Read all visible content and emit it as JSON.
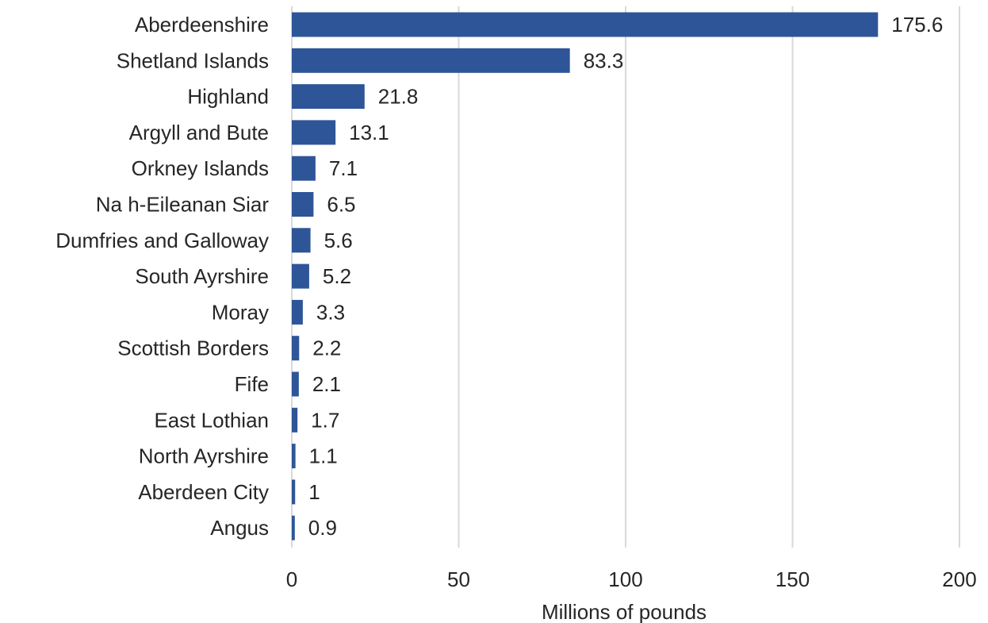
{
  "chart_data": {
    "type": "bar",
    "orientation": "horizontal",
    "title": "",
    "xlabel": "Millions of pounds",
    "ylabel": "",
    "xlim": [
      0,
      200
    ],
    "x_ticks": [
      0,
      50,
      100,
      150,
      200
    ],
    "grid": true,
    "legend": "none",
    "bar_color": "#2e5597",
    "categories": [
      "Aberdeenshire",
      "Shetland Islands",
      "Highland",
      "Argyll and Bute",
      "Orkney Islands",
      "Na h-Eileanan Siar",
      "Dumfries and Galloway",
      "South Ayrshire",
      "Moray",
      "Scottish Borders",
      "Fife",
      "East Lothian",
      "North Ayrshire",
      "Aberdeen City",
      "Angus"
    ],
    "values": [
      175.6,
      83.3,
      21.8,
      13.1,
      7.1,
      6.5,
      5.6,
      5.2,
      3.3,
      2.2,
      2.1,
      1.7,
      1.1,
      1,
      0.9
    ],
    "value_labels": [
      "175.6",
      "83.3",
      "21.8",
      "13.1",
      "7.1",
      "6.5",
      "5.6",
      "5.2",
      "3.3",
      "2.2",
      "2.1",
      "1.7",
      "1.1",
      "1",
      "0.9"
    ]
  }
}
